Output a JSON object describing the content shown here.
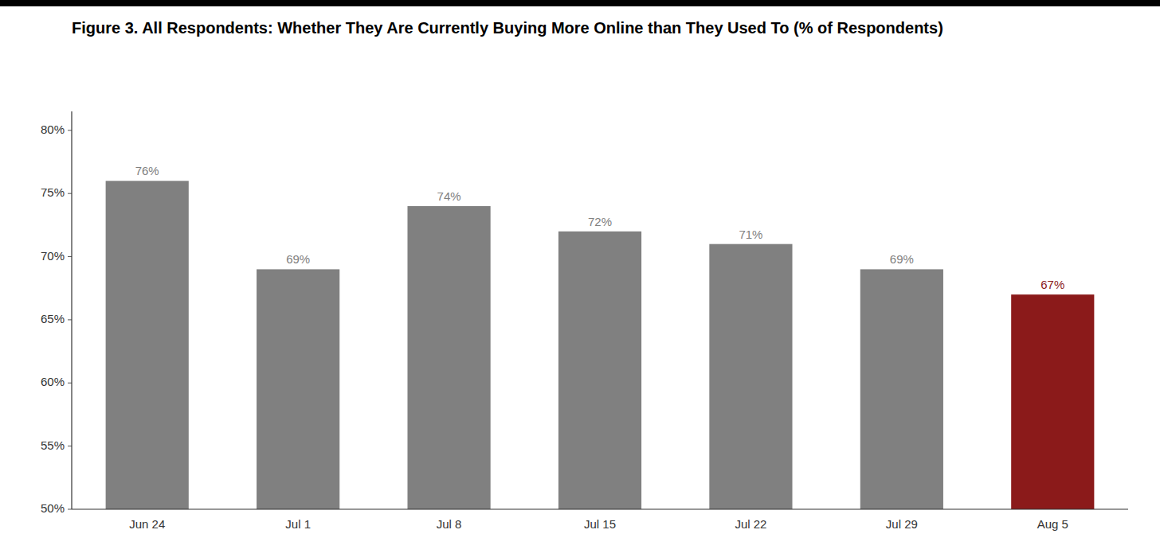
{
  "chart_data": {
    "type": "bar",
    "title": "Figure 3. All Respondents: Whether They Are Currently Buying More Online than They Used To (% of Respondents)",
    "categories": [
      "Jun 24",
      "Jul 1",
      "Jul 8",
      "Jul 15",
      "Jul 22",
      "Jul 29",
      "Aug 5"
    ],
    "values": [
      0.76,
      0.69,
      0.74,
      0.72,
      0.71,
      0.69,
      0.67
    ],
    "value_labels": [
      "76%",
      "69%",
      "74%",
      "72%",
      "71%",
      "69%",
      "67%"
    ],
    "colors": [
      "#808080",
      "#808080",
      "#808080",
      "#808080",
      "#808080",
      "#808080",
      "#8B1A1A"
    ],
    "ylim": [
      0.5,
      0.815
    ],
    "yticks": [
      {
        "value": 0.5,
        "label": "50%"
      },
      {
        "value": 0.55,
        "label": "55%"
      },
      {
        "value": 0.6,
        "label": "60%"
      },
      {
        "value": 0.65,
        "label": "65%"
      },
      {
        "value": 0.7,
        "label": "70%"
      },
      {
        "value": 0.75,
        "label": "75%"
      },
      {
        "value": 0.8,
        "label": "80%"
      }
    ],
    "grid": false,
    "data_labels": true
  }
}
